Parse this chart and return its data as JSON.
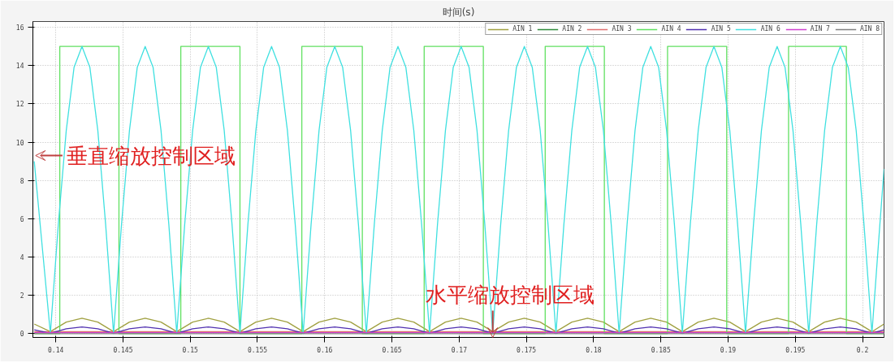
{
  "chart_data": {
    "type": "line",
    "xlabel": "时间(s)",
    "xlim": [
      0.1383,
      0.2016
    ],
    "ylim": [
      -0.2,
      16.3
    ],
    "xticks": [
      0.14,
      0.145,
      0.15,
      0.155,
      0.16,
      0.165,
      0.17,
      0.175,
      0.18,
      0.185,
      0.19,
      0.195,
      0.2
    ],
    "yticks": [
      0,
      2,
      4,
      6,
      8,
      10,
      12,
      14,
      16
    ],
    "grid": true,
    "legend": "top right",
    "annotations": [
      "垂直缩放控制区域",
      "水平缩放控制区域"
    ],
    "series": [
      {
        "name": "AIN 1",
        "color": "#a0a040",
        "x": [
          0.1384,
          0.1396,
          0.14078,
          0.14195,
          0.14313,
          0.1443,
          0.14548,
          0.14665,
          0.14783,
          0.149,
          0.15018,
          0.15135,
          0.15253,
          0.1537,
          0.15488,
          0.15605,
          0.15723,
          0.1584,
          0.15958,
          0.16075,
          0.16193,
          0.1631,
          0.16428,
          0.16545,
          0.16663,
          0.1678,
          0.16898,
          0.17015,
          0.17133,
          0.1725,
          0.17368,
          0.17485,
          0.17603,
          0.1772,
          0.17838,
          0.17955,
          0.18073,
          0.1819,
          0.18308,
          0.18425,
          0.18543,
          0.1866,
          0.18778,
          0.18895,
          0.19013,
          0.1913,
          0.19248,
          0.19365,
          0.19483,
          0.196,
          0.19718,
          0.19835,
          0.19953,
          0.2007,
          0.2016
        ],
        "values": [
          0.5,
          0.1,
          0.6,
          0.8,
          0.6,
          0.1,
          0.6,
          0.8,
          0.6,
          0.1,
          0.6,
          0.8,
          0.6,
          0.1,
          0.6,
          0.8,
          0.6,
          0.1,
          0.6,
          0.8,
          0.6,
          0.1,
          0.6,
          0.8,
          0.6,
          0.1,
          0.6,
          0.8,
          0.6,
          0.1,
          0.6,
          0.8,
          0.6,
          0.1,
          0.6,
          0.8,
          0.6,
          0.1,
          0.6,
          0.8,
          0.6,
          0.1,
          0.6,
          0.8,
          0.6,
          0.1,
          0.6,
          0.8,
          0.6,
          0.1,
          0.6,
          0.8,
          0.6,
          0.1,
          0.5
        ]
      },
      {
        "name": "AIN 2",
        "color": "#2e8b3a",
        "values": [
          null
        ]
      },
      {
        "name": "AIN 3",
        "color": "#e07070",
        "x": [
          0.1384,
          0.2016
        ],
        "values": [
          0.1,
          0.1
        ]
      },
      {
        "name": "AIN 4",
        "color": "#60e060",
        "x": [
          0.1384,
          0.1403,
          0.1403,
          0.1447,
          0.1447,
          0.1493,
          0.1493,
          0.1537,
          0.1537,
          0.1583,
          0.1583,
          0.1628,
          0.1628,
          0.1674,
          0.1674,
          0.1718,
          0.1718,
          0.1764,
          0.1764,
          0.1808,
          0.1808,
          0.1855,
          0.1855,
          0.1899,
          0.1899,
          0.1945,
          0.1945,
          0.1988,
          0.1988,
          0.2016
        ],
        "values": [
          0,
          0,
          15,
          15,
          0,
          0,
          15,
          15,
          0,
          0,
          15,
          15,
          0,
          0,
          15,
          15,
          0,
          0,
          15,
          15,
          0,
          0,
          15,
          15,
          0,
          0,
          15,
          15,
          0,
          0
        ]
      },
      {
        "name": "AIN 5",
        "color": "#5030b0",
        "x": [
          0.1384,
          0.1396,
          0.14078,
          0.14195,
          0.14313,
          0.1443,
          0.14548,
          0.14665,
          0.14783,
          0.149,
          0.15018,
          0.15135,
          0.15253,
          0.1537,
          0.15488,
          0.15605,
          0.15723,
          0.1584,
          0.15958,
          0.16075,
          0.16193,
          0.1631,
          0.16428,
          0.16545,
          0.16663,
          0.1678,
          0.16898,
          0.17015,
          0.17133,
          0.1725,
          0.17368,
          0.17485,
          0.17603,
          0.1772,
          0.17838,
          0.17955,
          0.18073,
          0.1819,
          0.18308,
          0.18425,
          0.18543,
          0.1866,
          0.18778,
          0.18895,
          0.19013,
          0.1913,
          0.19248,
          0.19365,
          0.19483,
          0.196,
          0.19718,
          0.19835,
          0.19953,
          0.2007,
          0.2016
        ],
        "values": [
          0.2,
          0.02,
          0.25,
          0.35,
          0.25,
          0.02,
          0.25,
          0.35,
          0.25,
          0.02,
          0.25,
          0.35,
          0.25,
          0.02,
          0.25,
          0.35,
          0.25,
          0.02,
          0.25,
          0.35,
          0.25,
          0.02,
          0.25,
          0.35,
          0.25,
          0.02,
          0.25,
          0.35,
          0.25,
          0.02,
          0.25,
          0.35,
          0.25,
          0.02,
          0.25,
          0.35,
          0.25,
          0.02,
          0.25,
          0.35,
          0.25,
          0.02,
          0.25,
          0.35,
          0.25,
          0.02,
          0.25,
          0.35,
          0.25,
          0.02,
          0.25,
          0.35,
          0.25,
          0.02,
          0.2
        ]
      },
      {
        "name": "AIN 6",
        "color": "#40e0e0",
        "x": [
          0.1384,
          0.139,
          0.1396,
          0.14019,
          0.14078,
          0.14136,
          0.14195,
          0.14254,
          0.14313,
          0.14371,
          0.1443,
          0.14489,
          0.14548,
          0.14606,
          0.14665,
          0.14724,
          0.14783,
          0.14841,
          0.149,
          0.14959,
          0.15018,
          0.15076,
          0.15135,
          0.15194,
          0.15253,
          0.15311,
          0.1537,
          0.15429,
          0.15488,
          0.15546,
          0.15605,
          0.15664,
          0.15723,
          0.15781,
          0.1584,
          0.15899,
          0.15958,
          0.16016,
          0.16075,
          0.16134,
          0.16193,
          0.16251,
          0.1631,
          0.16369,
          0.16428,
          0.16486,
          0.16545,
          0.16604,
          0.16663,
          0.16721,
          0.1678,
          0.16839,
          0.16898,
          0.16956,
          0.17015,
          0.17074,
          0.17133,
          0.17191,
          0.1725,
          0.17309,
          0.17368,
          0.17426,
          0.17485,
          0.17544,
          0.17603,
          0.17661,
          0.1772,
          0.17779,
          0.17838,
          0.17896,
          0.17955,
          0.18014,
          0.18073,
          0.18131,
          0.1819,
          0.18249,
          0.18308,
          0.18366,
          0.18425,
          0.18484,
          0.18543,
          0.18601,
          0.1866,
          0.18719,
          0.18778,
          0.18836,
          0.18895,
          0.18954,
          0.19013,
          0.19071,
          0.1913,
          0.19189,
          0.19248,
          0.19306,
          0.19365,
          0.19424,
          0.19483,
          0.19541,
          0.196,
          0.19659,
          0.19718,
          0.19776,
          0.19835,
          0.19894,
          0.19953,
          0.20011,
          0.2007,
          0.20129,
          0.2016
        ],
        "values": [
          9,
          4.5,
          0,
          5.7,
          10.6,
          13.9,
          15,
          13.9,
          10.6,
          5.7,
          0,
          5.7,
          10.6,
          13.9,
          15,
          13.9,
          10.6,
          5.7,
          0,
          5.7,
          10.6,
          13.9,
          15,
          13.9,
          10.6,
          5.7,
          0,
          5.7,
          10.6,
          13.9,
          15,
          13.9,
          10.6,
          5.7,
          0,
          5.7,
          10.6,
          13.9,
          15,
          13.9,
          10.6,
          5.7,
          0,
          5.7,
          10.6,
          13.9,
          15,
          13.9,
          10.6,
          5.7,
          0,
          5.7,
          10.6,
          13.9,
          15,
          13.9,
          10.6,
          5.7,
          0,
          5.7,
          10.6,
          13.9,
          15,
          13.9,
          10.6,
          5.7,
          0,
          5.7,
          10.6,
          13.9,
          15,
          13.9,
          10.6,
          5.7,
          0,
          5.7,
          10.6,
          13.9,
          15,
          13.9,
          10.6,
          5.7,
          0,
          5.7,
          10.6,
          13.9,
          15,
          13.9,
          10.6,
          5.7,
          0,
          5.7,
          10.6,
          13.9,
          15,
          13.9,
          10.6,
          5.7,
          0,
          5.7,
          10.6,
          13.9,
          15,
          13.9,
          10.6,
          5.7,
          0,
          5.7,
          8.6
        ]
      },
      {
        "name": "AIN 7",
        "color": "#d040d0",
        "x": [
          0.1384,
          0.2016
        ],
        "values": [
          0.05,
          0.05
        ]
      },
      {
        "name": "AIN 8",
        "color": "#808080",
        "x": [
          0.1384,
          0.2016
        ],
        "values": [
          0.0,
          0.0
        ]
      }
    ]
  }
}
